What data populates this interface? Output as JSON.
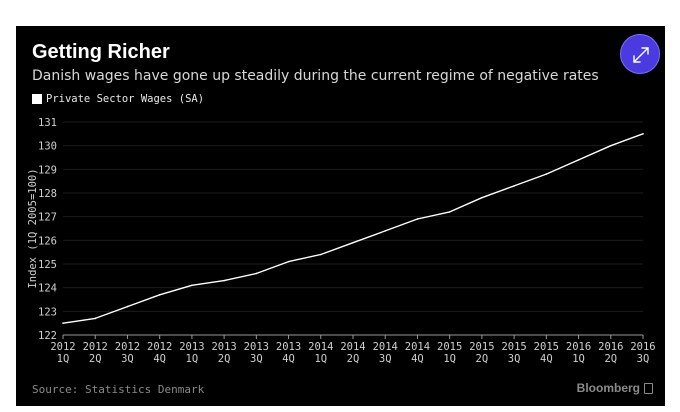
{
  "header": {
    "title": "Getting Richer",
    "subtitle": "Danish wages have gone up steadily during the current regime of negative rates"
  },
  "legend": {
    "label": "Private Sector Wages (SA)"
  },
  "footer": {
    "source": "Source: Statistics Denmark",
    "brand": "Bloomberg"
  },
  "icons": {
    "expand": "expand-arrows-icon",
    "brand": "bloomberg-logo-icon"
  },
  "colors": {
    "background": "#000000",
    "line": "#ffffff",
    "accent": "#4a3ae0",
    "text": "#ffffff",
    "muted": "#8a8a8a"
  },
  "chart_data": {
    "type": "line",
    "title": "Getting Richer",
    "xlabel": "",
    "ylabel": "Index (1Q 2005=100)",
    "ylim": [
      122,
      131
    ],
    "yticks": [
      122,
      123,
      124,
      125,
      126,
      127,
      128,
      129,
      130,
      131
    ],
    "grid": true,
    "legend_position": "top-left",
    "categories": [
      [
        "2012",
        "1Q"
      ],
      [
        "2012",
        "2Q"
      ],
      [
        "2012",
        "3Q"
      ],
      [
        "2012",
        "4Q"
      ],
      [
        "2013",
        "1Q"
      ],
      [
        "2013",
        "2Q"
      ],
      [
        "2013",
        "3Q"
      ],
      [
        "2013",
        "4Q"
      ],
      [
        "2014",
        "1Q"
      ],
      [
        "2014",
        "2Q"
      ],
      [
        "2014",
        "3Q"
      ],
      [
        "2014",
        "4Q"
      ],
      [
        "2015",
        "1Q"
      ],
      [
        "2015",
        "2Q"
      ],
      [
        "2015",
        "3Q"
      ],
      [
        "2015",
        "4Q"
      ],
      [
        "2016",
        "1Q"
      ],
      [
        "2016",
        "2Q"
      ],
      [
        "2016",
        "3Q"
      ]
    ],
    "series": [
      {
        "name": "Private Sector Wages (SA)",
        "values": [
          122.5,
          122.7,
          123.2,
          123.7,
          124.1,
          124.3,
          124.6,
          125.1,
          125.4,
          125.9,
          126.4,
          126.9,
          127.2,
          127.8,
          128.3,
          128.8,
          129.4,
          130.0,
          130.5
        ]
      }
    ]
  }
}
